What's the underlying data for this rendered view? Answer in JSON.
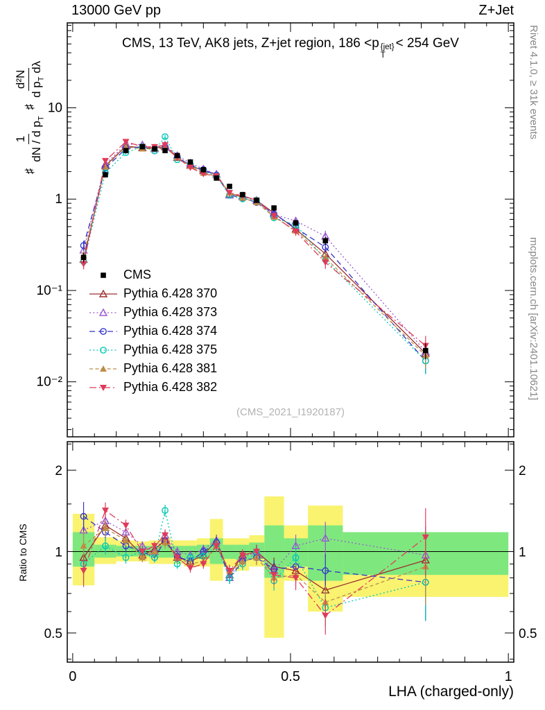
{
  "page": {
    "top_left": "13000 GeV pp",
    "top_right": "Z+Jet",
    "watermark": "(CMS_2021_I1920187)",
    "rivet_note": "Rivet 4.1.0, ≥ 31k events",
    "mcplots_note": "mcplots.cern.ch [arXiv:2401.10621]"
  },
  "main_panel": {
    "title": {
      "pre": "CMS, 13 TeV, AK8 jets, Z+jet region, 186 <p",
      "sup": "{jet}",
      "sub": "T",
      "post": "< 254 GeV"
    },
    "ylabel": {
      "s1": "♯",
      "f1n": "1",
      "f1d_pre": "dN / d p",
      "f1d_sub": "T",
      "s2": "♯",
      "f2n": "d²N",
      "f2d_pre": "d p",
      "f2d_sub": "T",
      "f2d_post": " dλ"
    }
  },
  "ratio_panel": {
    "ylabel": "Ratio to CMS"
  },
  "xlabel": "LHA (charged-only)",
  "chart_data": {
    "type": "line",
    "title": "CMS, 13 TeV, AK8 jets, Z+jet region, 186 < pT{jet} < 254 GeV",
    "xlabel": "LHA (charged-only)",
    "ylabel_main": "♯ 1/(dN/dpT) ♯ d²N/(dpT dλ)",
    "ylabel_ratio": "Ratio to CMS",
    "x_range": [
      0,
      1
    ],
    "xticks": [
      {
        "v": 0,
        "label": "0"
      },
      {
        "v": 0.5,
        "label": "0.5"
      },
      {
        "v": 1,
        "label": "1"
      }
    ],
    "main": {
      "yscale": "log",
      "ylim": [
        0.0025,
        85
      ],
      "yticks": [
        {
          "v": 10,
          "label": "10"
        },
        {
          "v": 1,
          "label": "1"
        },
        {
          "v": 0.1,
          "label": "10⁻¹"
        },
        {
          "v": 0.01,
          "label": "10⁻²"
        }
      ]
    },
    "ratio": {
      "yscale": "log",
      "ylim": [
        0.39,
        2.55
      ],
      "yticks": [
        {
          "v": 2,
          "label": "2"
        },
        {
          "v": 1,
          "label": "1"
        },
        {
          "v": 0.5,
          "label": "0.5"
        }
      ]
    },
    "bin_edges": [
      0,
      0.05,
      0.1,
      0.145,
      0.175,
      0.2,
      0.225,
      0.255,
      0.285,
      0.315,
      0.345,
      0.375,
      0.405,
      0.44,
      0.485,
      0.54,
      0.62,
      1.0
    ],
    "x": [
      0.025,
      0.075,
      0.122,
      0.16,
      0.188,
      0.212,
      0.24,
      0.27,
      0.3,
      0.33,
      0.36,
      0.39,
      0.422,
      0.462,
      0.512,
      0.58,
      0.81
    ],
    "cms": {
      "id": "cms",
      "label": "CMS",
      "marker": "square-filled",
      "color": "#000000",
      "y": [
        0.23,
        1.85,
        3.4,
        3.75,
        3.55,
        3.4,
        3.0,
        2.55,
        2.1,
        1.7,
        1.38,
        1.12,
        0.97,
        0.8,
        0.55,
        0.35,
        0.022
      ],
      "yerr_frac": [
        0.12,
        0.07,
        0.05,
        0.05,
        0.05,
        0.05,
        0.05,
        0.05,
        0.05,
        0.06,
        0.05,
        0.05,
        0.06,
        0.07,
        0.08,
        0.1,
        0.2
      ]
    },
    "ratio_err_frac": [
      0.13,
      0.07,
      0.05,
      0.04,
      0.04,
      0.05,
      0.04,
      0.04,
      0.04,
      0.05,
      0.05,
      0.05,
      0.06,
      0.08,
      0.1,
      0.15,
      0.28
    ],
    "series": [
      {
        "id": "370",
        "label": "Pythia 6.428 370",
        "color": "#9c2f2f",
        "marker": "triangle-open",
        "line": "solid",
        "ratio": [
          0.95,
          1.25,
          1.12,
          0.97,
          1.02,
          1.1,
          0.95,
          0.92,
          0.97,
          1.1,
          0.82,
          0.97,
          1.0,
          0.88,
          0.85,
          0.72,
          0.93
        ]
      },
      {
        "id": "373",
        "label": "Pythia 6.428 373",
        "color": "#9b59d0",
        "marker": "triangle-open",
        "line": "dotted",
        "ratio": [
          1.2,
          1.3,
          1.18,
          1.05,
          1.0,
          1.15,
          1.0,
          0.97,
          1.02,
          1.1,
          0.8,
          0.95,
          1.0,
          0.85,
          1.05,
          1.12,
          0.97
        ]
      },
      {
        "id": "374",
        "label": "Pythia 6.428 374",
        "color": "#3333cc",
        "marker": "circle-open",
        "line": "dashed",
        "ratio": [
          1.35,
          1.18,
          1.05,
          1.0,
          0.95,
          1.1,
          0.96,
          0.92,
          1.0,
          1.08,
          0.8,
          0.92,
          0.95,
          0.86,
          0.88,
          0.85,
          0.77
        ]
      },
      {
        "id": "375",
        "label": "Pythia 6.428 375",
        "color": "#00c8b4",
        "marker": "circle-open",
        "line": "dotted",
        "ratio": [
          0.9,
          1.05,
          0.95,
          1.0,
          0.95,
          1.42,
          0.9,
          0.95,
          0.96,
          1.05,
          0.8,
          0.9,
          1.0,
          0.78,
          0.95,
          0.62,
          0.77
        ]
      },
      {
        "id": "381",
        "label": "Pythia 6.428 381",
        "color": "#bd8d46",
        "marker": "triangle-filled",
        "line": "shortdash",
        "ratio": [
          1.05,
          1.22,
          1.1,
          0.95,
          1.0,
          1.08,
          0.95,
          0.9,
          0.92,
          1.05,
          0.85,
          0.92,
          0.95,
          0.8,
          0.82,
          0.65,
          0.88
        ]
      },
      {
        "id": "382",
        "label": "Pythia 6.428 382",
        "color": "#e03a5a",
        "marker": "triangle-down-filled",
        "line": "dashdot",
        "ratio": [
          0.85,
          1.42,
          1.25,
          1.0,
          1.05,
          1.15,
          0.95,
          0.87,
          0.9,
          1.05,
          0.85,
          0.97,
          1.0,
          0.82,
          0.8,
          0.58,
          1.13
        ]
      }
    ],
    "bands": {
      "yellow_color": "#f9f370",
      "green_color": "#7ee87e",
      "yellow": [
        [
          0.75,
          1.38
        ],
        [
          0.9,
          1.13
        ],
        [
          0.92,
          1.1
        ],
        [
          0.92,
          1.09
        ],
        [
          0.9,
          1.1
        ],
        [
          0.9,
          1.13
        ],
        [
          0.9,
          1.1
        ],
        [
          0.88,
          1.1
        ],
        [
          0.88,
          1.12
        ],
        [
          0.78,
          1.32
        ],
        [
          0.88,
          1.12
        ],
        [
          0.85,
          1.12
        ],
        [
          0.88,
          1.15
        ],
        [
          0.48,
          1.6
        ],
        [
          0.78,
          1.25
        ],
        [
          0.6,
          1.48
        ],
        [
          0.68,
          1.18
        ]
      ],
      "green": [
        [
          0.88,
          1.18
        ],
        [
          0.95,
          1.06
        ],
        [
          0.96,
          1.05
        ],
        [
          0.96,
          1.05
        ],
        [
          0.95,
          1.05
        ],
        [
          0.95,
          1.06
        ],
        [
          0.95,
          1.05
        ],
        [
          0.94,
          1.05
        ],
        [
          0.94,
          1.06
        ],
        [
          0.9,
          1.12
        ],
        [
          0.94,
          1.06
        ],
        [
          0.93,
          1.06
        ],
        [
          0.94,
          1.08
        ],
        [
          0.8,
          1.25
        ],
        [
          0.88,
          1.12
        ],
        [
          0.78,
          1.25
        ],
        [
          0.82,
          1.18
        ]
      ]
    }
  }
}
